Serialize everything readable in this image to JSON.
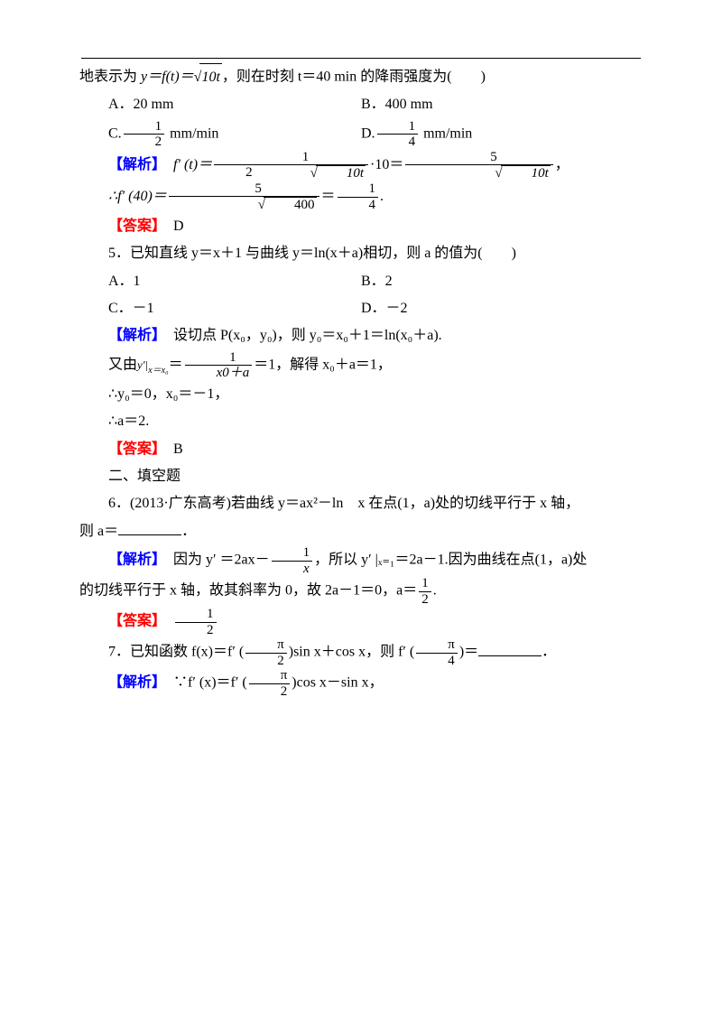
{
  "colors": {
    "text": "#000000",
    "jiexi": "#0000ff",
    "daan": "#ff0000",
    "bg": "#ffffff",
    "rule": "#000000"
  },
  "typography": {
    "body_fontsize": 16,
    "math_font": "Times New Roman",
    "cjk_font": "SimSun"
  },
  "labels": {
    "jiexi": "【解析】",
    "daan": "【答案】"
  },
  "q4": {
    "stem_pre": "地表示为 ",
    "stem_expr_lhs": "y＝f(t)＝",
    "stem_sqrt_arg": "10t",
    "stem_post": "，则在时刻 t＝40 min 的降雨强度为(　　)",
    "opts": {
      "A": "A．20 mm",
      "B": "B．400 mm",
      "C_pre": "C.",
      "C_frac_n": "1",
      "C_frac_d": "2",
      "C_post": " mm/min",
      "D_pre": "D.",
      "D_frac_n": "1",
      "D_frac_d": "4",
      "D_post": " mm/min"
    },
    "sol": {
      "l1_pre": "f′ (t)＝",
      "l1_f1_n": "1",
      "l1_f1_d_pre": "2",
      "l1_f1_d_sqrt": "10t",
      "l1_mid": "·10＝",
      "l1_f2_n": "5",
      "l1_f2_d_sqrt": "10t",
      "l1_post": "，",
      "l2_pre": "∴f′ (40)＝",
      "l2_f1_n": "5",
      "l2_f1_d_sqrt": "400",
      "l2_mid": "＝",
      "l2_f2_n": "1",
      "l2_f2_d": "4",
      "l2_post": "."
    },
    "answer": "D"
  },
  "q5": {
    "stem": "5．已知直线 y＝x＋1 与曲线 y＝ln(x＋a)相切，则 a 的值为(　　)",
    "opts": {
      "A": "A．1",
      "B": "B．2",
      "C": "C．－1",
      "D": "D．－2"
    },
    "sol": {
      "l1": "设切点 P(x₀，y₀)，则 y₀＝x₀＋1＝ln(x₀＋a).",
      "l2_pre": "又由",
      "l2_deriv": "y′|",
      "l2_sub": "x＝x₀",
      "l2_eq": "＝",
      "l2_frac_n": "1",
      "l2_frac_d": "x0＋a",
      "l2_post": "＝1，解得 x₀＋a＝1，",
      "l3": "∴y₀＝0，x₀＝－1，",
      "l4": "∴a＝2."
    },
    "answer": "B"
  },
  "section2": "二、填空题",
  "q6": {
    "stem_l1": "6．(2013·广东高考)若曲线 y＝ax²－ln　x 在点(1，a)处的切线平行于 x 轴，",
    "stem_l2_pre": "则 a＝",
    "stem_l2_post": "．",
    "sol": {
      "l1_pre": "因为 y′ ＝2ax－",
      "l1_frac_n": "1",
      "l1_frac_d": "x",
      "l1_post": "，所以 y′ |ₓ₌₁＝2a－1.因为曲线在点(1，a)处",
      "l2_pre": "的切线平行于 x 轴，故其斜率为 0，故 2a－1＝0，a＝",
      "l2_frac_n": "1",
      "l2_frac_d": "2",
      "l2_post": "."
    },
    "answer_frac_n": "1",
    "answer_frac_d": "2"
  },
  "q7": {
    "stem_pre": "7．已知函数 f(x)＝f′ (",
    "stem_f1_n": "π",
    "stem_f1_d": "2",
    "stem_mid1": ")sin x＋cos x，则 f′ (",
    "stem_f2_n": "π",
    "stem_f2_d": "4",
    "stem_mid2": ")＝",
    "stem_post": "．",
    "sol": {
      "l1_pre": "∵f′ (x)＝f′ (",
      "l1_f_n": "π",
      "l1_f_d": "2",
      "l1_post": ")cos x－sin x，"
    }
  }
}
